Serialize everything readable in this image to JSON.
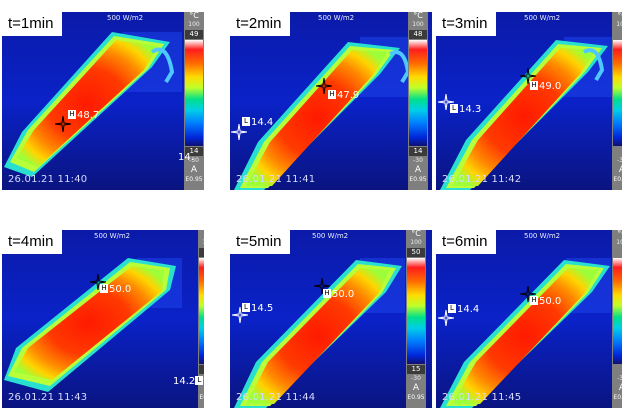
{
  "irradiance": "500 W/m2",
  "unit": "°C",
  "scale_max": "100",
  "scale_min": "-30",
  "mode": "A",
  "emissivity": "E0.95",
  "panels": [
    {
      "time_label": "t=1min",
      "scale_top": "49",
      "scale_bottom": "14",
      "hot": "48.7",
      "cold": "14.",
      "timestamp": "26.01.21 11:40"
    },
    {
      "time_label": "t=2min",
      "scale_top": "48",
      "scale_bottom": "14",
      "hot": "47.9",
      "cold": "14.4",
      "timestamp": "26.01.21 11:41"
    },
    {
      "time_label": "t=3min",
      "scale_top": "",
      "scale_bottom": "",
      "hot": "49.0",
      "cold": "14.3",
      "timestamp": "26.01.21 11:42"
    },
    {
      "time_label": "t=4min",
      "scale_top": "50",
      "scale_bottom": "14",
      "hot": "50.0",
      "cold": "14.2",
      "timestamp": "26.01.21 11:43"
    },
    {
      "time_label": "t=5min",
      "scale_top": "50",
      "scale_bottom": "15",
      "hot": "50.0",
      "cold": "14.5",
      "timestamp": "26.01.21 11:44"
    },
    {
      "time_label": "t=6min",
      "scale_top": "",
      "scale_bottom": "",
      "hot": "50.0",
      "cold": "14.4",
      "timestamp": "26.01.21 11:45"
    }
  ]
}
